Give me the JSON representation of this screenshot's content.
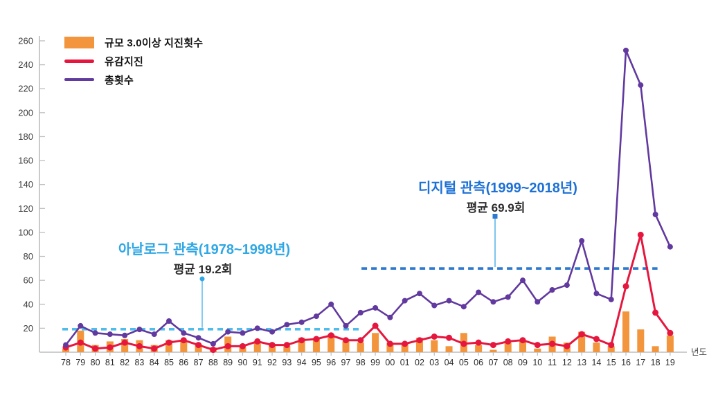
{
  "legend": {
    "items": [
      {
        "label": "규모 3.0이상 지진횟수",
        "type": "bar",
        "color": "#F2953D"
      },
      {
        "label": "유감지진",
        "type": "line",
        "color": "#E6173E"
      },
      {
        "label": "총횟수",
        "type": "line",
        "color": "#61399F"
      }
    ]
  },
  "annotations": {
    "analog": {
      "title": "아날로그 관측(1978~1998년)",
      "subtitle": "평균 19.2회",
      "mean": 19.2,
      "span_years": [
        "78",
        "98"
      ],
      "title_color": "#2FA7E4",
      "dash_color": "#4FBDEC",
      "leader_color": "#86CCF2"
    },
    "digital": {
      "title": "디지털 관측(1999~2018년)",
      "subtitle": "평균 69.9회",
      "mean": 69.9,
      "span_years": [
        "99",
        "18"
      ],
      "title_color": "#1C70D6",
      "dash_color": "#2E79D0",
      "leader_color": "#7CC5EF"
    }
  },
  "axes": {
    "xlabel": "년도",
    "yticks": [
      20,
      40,
      60,
      80,
      100,
      120,
      140,
      160,
      180,
      200,
      220,
      240,
      260
    ],
    "axis_color": "#BDBDBD",
    "ytick_label_color": "#3D3D3D",
    "xtick_label_color": "#2B2B2B"
  },
  "chart_data": {
    "type": "bar",
    "title": "",
    "xlabel": "년도",
    "ylabel": "",
    "ylim": [
      0,
      260
    ],
    "grid": false,
    "legend_position": "top-left",
    "categories": [
      "78",
      "79",
      "80",
      "81",
      "82",
      "83",
      "84",
      "85",
      "86",
      "87",
      "88",
      "89",
      "90",
      "91",
      "92",
      "93",
      "94",
      "95",
      "96",
      "97",
      "98",
      "99",
      "00",
      "01",
      "02",
      "03",
      "04",
      "05",
      "06",
      "07",
      "08",
      "09",
      "10",
      "11",
      "12",
      "13",
      "14",
      "15",
      "16",
      "17",
      "18",
      "19"
    ],
    "series": [
      {
        "name": "규모 3.0이상 지진횟수",
        "type": "bar",
        "color": "#F2953D",
        "values": [
          3,
          18,
          6,
          9,
          11,
          10,
          6,
          10,
          9,
          7,
          4,
          13,
          4,
          9,
          6,
          5,
          12,
          12,
          15,
          9,
          8,
          16,
          8,
          7,
          12,
          10,
          5,
          16,
          6,
          2,
          8,
          9,
          3,
          13,
          8,
          17,
          8,
          5,
          34,
          19,
          5,
          14
        ]
      },
      {
        "name": "유감지진",
        "type": "line",
        "color": "#E6173E",
        "values": [
          4,
          8,
          3,
          4,
          8,
          5,
          3,
          8,
          10,
          6,
          2,
          5,
          5,
          9,
          6,
          6,
          10,
          11,
          14,
          10,
          10,
          22,
          7,
          7,
          10,
          13,
          12,
          7,
          8,
          6,
          9,
          10,
          6,
          7,
          5,
          15,
          11,
          6,
          55,
          98,
          33,
          16
        ]
      },
      {
        "name": "총횟수",
        "type": "line",
        "color": "#61399F",
        "values": [
          6,
          22,
          16,
          15,
          14,
          19,
          15,
          26,
          16,
          12,
          7,
          17,
          16,
          20,
          17,
          23,
          25,
          30,
          40,
          22,
          33,
          37,
          29,
          43,
          49,
          39,
          43,
          38,
          50,
          42,
          46,
          60,
          42,
          52,
          56,
          93,
          49,
          44,
          252,
          223,
          115,
          88
        ]
      }
    ]
  }
}
